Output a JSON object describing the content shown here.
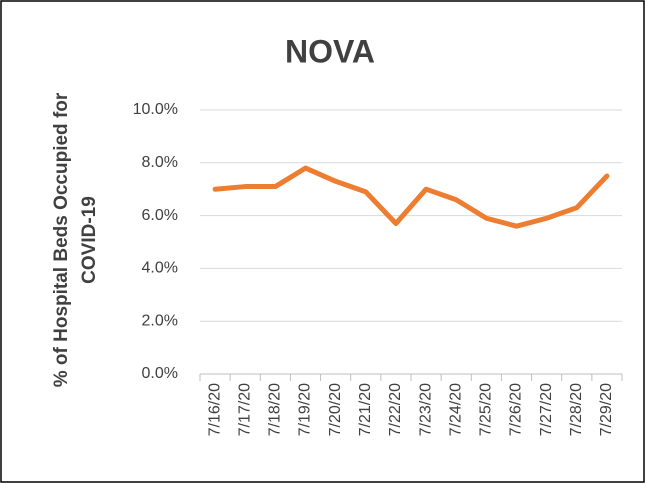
{
  "chart_data": {
    "type": "line",
    "title": "NOVA",
    "y_label": [
      "% of Hospital Beds Occupied for",
      "COVID-19"
    ],
    "categories": [
      "7/16/20",
      "7/17/20",
      "7/18/20",
      "7/19/20",
      "7/20/20",
      "7/21/20",
      "7/22/20",
      "7/23/20",
      "7/24/20",
      "7/25/20",
      "7/26/20",
      "7/27/20",
      "7/28/20",
      "7/29/20"
    ],
    "values": [
      7.0,
      7.1,
      7.1,
      7.8,
      7.3,
      6.9,
      5.7,
      7.0,
      6.6,
      5.9,
      5.6,
      5.9,
      6.3,
      7.5
    ],
    "color": "#ed7d31",
    "ylim": [
      0,
      10
    ],
    "yticks": [
      {
        "value": 0,
        "label": "0.0%"
      },
      {
        "value": 2,
        "label": "2.0%"
      },
      {
        "value": 4,
        "label": "4.0%"
      },
      {
        "value": 6,
        "label": "6.0%"
      },
      {
        "value": 8,
        "label": "8.0%"
      },
      {
        "value": 10,
        "label": "10.0%"
      }
    ],
    "grid": true
  }
}
